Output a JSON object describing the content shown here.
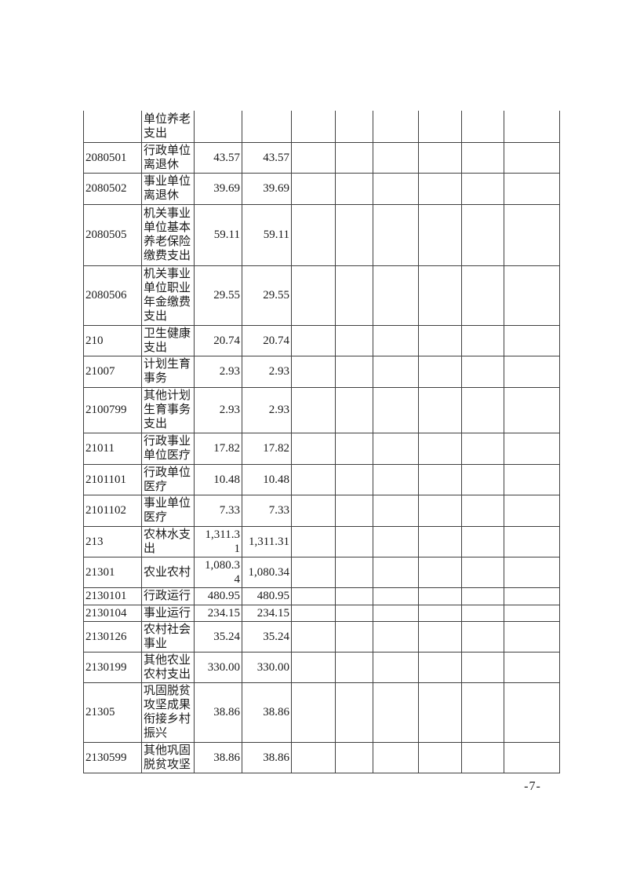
{
  "page": {
    "page_number": "-7-",
    "background_color": "#ffffff",
    "text_color": "#1a1a1a"
  },
  "table": {
    "border_color": "#404040",
    "empty_trailing_column_count": 6,
    "rows": [
      {
        "code": "",
        "name": "单位养老支出",
        "amount1": "",
        "amount2": ""
      },
      {
        "code": "2080501",
        "name": "行政单位离退休",
        "amount1": "43.57",
        "amount2": "43.57"
      },
      {
        "code": "2080502",
        "name": "事业单位离退休",
        "amount1": "39.69",
        "amount2": "39.69"
      },
      {
        "code": "2080505",
        "name": "机关事业单位基本养老保险缴费支出",
        "amount1": "59.11",
        "amount2": "59.11"
      },
      {
        "code": "2080506",
        "name": "机关事业单位职业年金缴费支出",
        "amount1": "29.55",
        "amount2": "29.55"
      },
      {
        "code": "210",
        "name": "卫生健康支出",
        "amount1": "20.74",
        "amount2": "20.74"
      },
      {
        "code": "21007",
        "name": "计划生育事务",
        "amount1": "2.93",
        "amount2": "2.93"
      },
      {
        "code": "2100799",
        "name": "其他计划生育事务支出",
        "amount1": "2.93",
        "amount2": "2.93"
      },
      {
        "code": "21011",
        "name": "行政事业单位医疗",
        "amount1": "17.82",
        "amount2": "17.82"
      },
      {
        "code": "2101101",
        "name": "行政单位医疗",
        "amount1": "10.48",
        "amount2": "10.48"
      },
      {
        "code": "2101102",
        "name": "事业单位医疗",
        "amount1": "7.33",
        "amount2": "7.33"
      },
      {
        "code": "213",
        "name": "农林水支出",
        "amount1": "1,311.3\n1",
        "amount2": "1,311.31"
      },
      {
        "code": "21301",
        "name": "农业农村",
        "amount1": "1,080.3\n4",
        "amount2": "1,080.34"
      },
      {
        "code": "2130101",
        "name": "行政运行",
        "amount1": "480.95",
        "amount2": "480.95"
      },
      {
        "code": "2130104",
        "name": "事业运行",
        "amount1": "234.15",
        "amount2": "234.15"
      },
      {
        "code": "2130126",
        "name": "农村社会事业",
        "amount1": "35.24",
        "amount2": "35.24"
      },
      {
        "code": "2130199",
        "name": "其他农业农村支出",
        "amount1": "330.00",
        "amount2": "330.00"
      },
      {
        "code": "21305",
        "name": "巩固脱贫攻坚成果衔接乡村振兴",
        "amount1": "38.86",
        "amount2": "38.86"
      },
      {
        "code": "2130599",
        "name": "其他巩固脱贫攻坚",
        "amount1": "38.86",
        "amount2": "38.86"
      }
    ]
  }
}
